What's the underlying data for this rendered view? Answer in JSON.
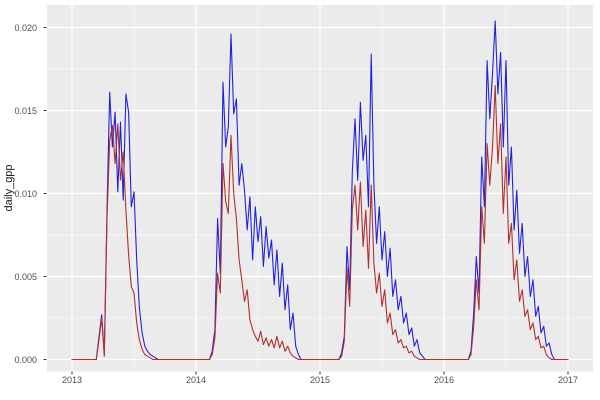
{
  "figure": {
    "background": "#FFFFFF",
    "panel_background": "#EBEBEB",
    "grid_major_color": "#FFFFFF",
    "grid_minor_color": "#FFFFFF",
    "axis_text_color": "#4D4D4D",
    "tick_mark_color": "#333333"
  },
  "y_axis": {
    "title": "daily_gpp",
    "tick_labels": [
      "0.020",
      "0.015",
      "0.010",
      "0.005",
      "0.000"
    ],
    "tick_values": [
      0.02,
      0.015,
      0.01,
      0.005,
      0.0
    ],
    "minor_values": [
      0.0175,
      0.0125,
      0.0075,
      0.0025
    ]
  },
  "x_axis": {
    "tick_labels": [
      "2013",
      "2014",
      "2015",
      "2016",
      "2017"
    ],
    "tick_values": [
      2013,
      2014,
      2015,
      2016,
      2017
    ],
    "minor_values": [
      2013.5,
      2014.5,
      2015.5,
      2016.5
    ]
  },
  "chart_data": {
    "type": "line",
    "title": "",
    "xlabel": "",
    "ylabel": "daily_gpp",
    "x_start": 2013.0,
    "points_per_year": 46,
    "xlim": [
      2012.8,
      2017.2
    ],
    "ylim": [
      -0.001,
      0.0214
    ],
    "grid": "on",
    "legend": "none",
    "series": [
      {
        "name": "gpp-blue",
        "color": "#2222DC",
        "values": [
          0,
          0,
          0,
          0,
          0,
          0,
          0,
          0,
          0,
          0,
          0.0014,
          0.0027,
          0.0003,
          0.009,
          0.0161,
          0.0128,
          0.0149,
          0.0101,
          0.0143,
          0.0096,
          0.016,
          0.0149,
          0.0092,
          0.0101,
          0.006,
          0.0031,
          0.0016,
          0.0008,
          0.0005,
          0.0003,
          0.0002,
          0.0001,
          0,
          0,
          0,
          0,
          0,
          0,
          0,
          0,
          0,
          0,
          0,
          0,
          0,
          0,
          0,
          0,
          0,
          0,
          0,
          0,
          0.0005,
          0.0018,
          0.0085,
          0.0052,
          0.0167,
          0.0128,
          0.014,
          0.0196,
          0.0148,
          0.0157,
          0.0105,
          0.0118,
          0.0102,
          0.0078,
          0.0098,
          0.006,
          0.0092,
          0.0071,
          0.0086,
          0.0056,
          0.008,
          0.0061,
          0.0072,
          0.0045,
          0.0066,
          0.0038,
          0.0058,
          0.003,
          0.0045,
          0.0018,
          0.0028,
          0.0008,
          0.0003,
          0,
          0,
          0,
          0,
          0,
          0,
          0,
          0,
          0,
          0,
          0,
          0,
          0,
          0,
          0,
          0.0004,
          0.0014,
          0.0068,
          0.0042,
          0.0113,
          0.0145,
          0.0108,
          0.0155,
          0.012,
          0.0135,
          0.0092,
          0.0184,
          0.0105,
          0.007,
          0.0092,
          0.006,
          0.0077,
          0.005,
          0.0067,
          0.0038,
          0.0048,
          0.003,
          0.0038,
          0.0022,
          0.0028,
          0.0015,
          0.0019,
          0.0008,
          0.0012,
          0.0004,
          0.0002,
          0,
          0,
          0,
          0,
          0,
          0,
          0,
          0,
          0,
          0,
          0,
          0,
          0,
          0,
          0,
          0,
          0,
          0.0005,
          0.0028,
          0.0062,
          0.004,
          0.0122,
          0.0092,
          0.018,
          0.0145,
          0.0172,
          0.0204,
          0.016,
          0.0185,
          0.0128,
          0.018,
          0.0105,
          0.0128,
          0.0078,
          0.0102,
          0.0064,
          0.0082,
          0.005,
          0.0062,
          0.0038,
          0.0048,
          0.0026,
          0.0032,
          0.0016,
          0.002,
          0.0008,
          0.001,
          0.0003,
          0,
          0,
          0,
          0,
          0,
          0
        ]
      },
      {
        "name": "gpp-red",
        "color": "#B03030",
        "values": [
          0,
          0,
          0,
          0,
          0,
          0,
          0,
          0,
          0,
          0,
          0.0012,
          0.0025,
          0.0002,
          0.0085,
          0.0132,
          0.0141,
          0.0118,
          0.0142,
          0.0108,
          0.0125,
          0.009,
          0.0063,
          0.0044,
          0.004,
          0.0022,
          0.0012,
          0.0006,
          0.0003,
          0.0002,
          0.0001,
          0,
          0,
          0,
          0,
          0,
          0,
          0,
          0,
          0,
          0,
          0,
          0,
          0,
          0,
          0,
          0,
          0,
          0,
          0,
          0,
          0,
          0,
          0.0003,
          0.0013,
          0.0052,
          0.004,
          0.0118,
          0.0095,
          0.0088,
          0.0135,
          0.01,
          0.0085,
          0.006,
          0.0048,
          0.0035,
          0.0042,
          0.0024,
          0.0018,
          0.0014,
          0.0011,
          0.0017,
          0.0009,
          0.0013,
          0.0008,
          0.0012,
          0.0007,
          0.0014,
          0.0007,
          0.0011,
          0.0005,
          0.0008,
          0.0004,
          0.0002,
          0.0001,
          0,
          0,
          0,
          0,
          0,
          0,
          0,
          0,
          0,
          0,
          0,
          0,
          0,
          0,
          0,
          0,
          0.0002,
          0.0011,
          0.0055,
          0.0032,
          0.009,
          0.0105,
          0.0078,
          0.0107,
          0.0068,
          0.009,
          0.0055,
          0.0105,
          0.0058,
          0.004,
          0.0052,
          0.0032,
          0.0042,
          0.0022,
          0.0028,
          0.0015,
          0.0018,
          0.001,
          0.0012,
          0.0007,
          0.0008,
          0.0004,
          0.0005,
          0.0002,
          0.0001,
          0,
          0,
          0,
          0,
          0,
          0,
          0,
          0,
          0,
          0,
          0,
          0,
          0,
          0,
          0,
          0,
          0,
          0,
          0,
          0.0003,
          0.002,
          0.0048,
          0.003,
          0.0092,
          0.007,
          0.013,
          0.0105,
          0.0128,
          0.0165,
          0.0118,
          0.0142,
          0.0088,
          0.0122,
          0.007,
          0.0082,
          0.0048,
          0.006,
          0.0035,
          0.0042,
          0.0026,
          0.003,
          0.0018,
          0.0022,
          0.0012,
          0.0014,
          0.0007,
          0.0008,
          0.0003,
          0.0001,
          0,
          0,
          0,
          0,
          0,
          0,
          0
        ]
      }
    ]
  }
}
